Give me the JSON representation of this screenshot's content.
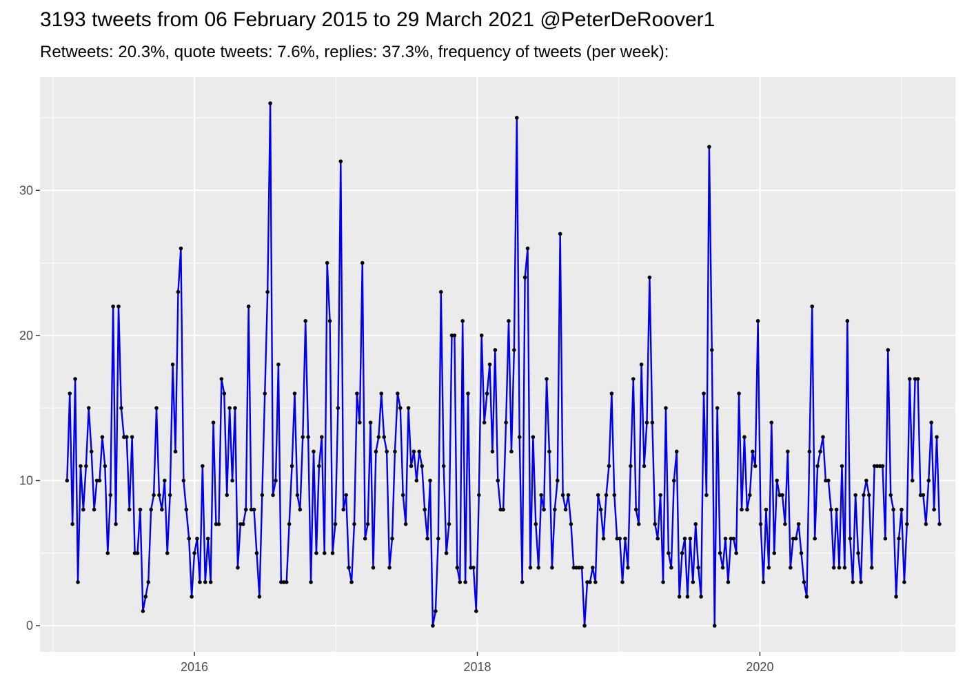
{
  "chart_data": {
    "type": "line",
    "title": "3193 tweets from 06 February 2015 to 29 March 2021 @PeterDeRoover1",
    "subtitle": "Retweets: 20.3%, quote tweets: 7.6%, replies: 37.3%, frequency of tweets (per week):",
    "xlabel": "",
    "ylabel": "",
    "x_start_date": "2015-02-06",
    "x_end_date": "2021-03-29",
    "xlim": [
      "2014-11-28",
      "2021-05-20"
    ],
    "ylim": [
      -1.8,
      37.8
    ],
    "x_ticks": [
      {
        "date": "2016-01-01",
        "label": "2016"
      },
      {
        "date": "2018-01-01",
        "label": "2018"
      },
      {
        "date": "2020-01-01",
        "label": "2020"
      }
    ],
    "x_minor_ticks": [
      "2015-01-01",
      "2017-01-01",
      "2019-01-01",
      "2021-01-01"
    ],
    "y_ticks": [
      0,
      10,
      20,
      30
    ],
    "y_minor_ticks": [
      5,
      15,
      25,
      35
    ],
    "grid": true,
    "line_color": "#0000ee",
    "point_color": "#000000",
    "panel_background": "#ebebeb",
    "series": [
      {
        "values": [
          10,
          16,
          7,
          17,
          3,
          11,
          8,
          11,
          15,
          12,
          8,
          10,
          10,
          13,
          11,
          5,
          9,
          22,
          7,
          22,
          15,
          13,
          13,
          8,
          13,
          5,
          5,
          8,
          1,
          2,
          3,
          8,
          9,
          15,
          9,
          8,
          10,
          5,
          9,
          18,
          12,
          23,
          26,
          10,
          8,
          6,
          2,
          5,
          6,
          3,
          11,
          3,
          6,
          3,
          14,
          7,
          7,
          17,
          16,
          9,
          15,
          10,
          15,
          4,
          7,
          7,
          8,
          22,
          8,
          8,
          5,
          2,
          9,
          16,
          23,
          36,
          9,
          10,
          18,
          3,
          3,
          3,
          7,
          11,
          16,
          9,
          8,
          13,
          21,
          13,
          3,
          12,
          5,
          11,
          13,
          5,
          25,
          21,
          5,
          7,
          15,
          32,
          8,
          9,
          4,
          3,
          7,
          16,
          14,
          25,
          6,
          7,
          14,
          4,
          12,
          13,
          16,
          13,
          12,
          4,
          6,
          12,
          16,
          15,
          9,
          7,
          15,
          11,
          12,
          10,
          12,
          11,
          8,
          6,
          10,
          0,
          1,
          6,
          23,
          11,
          5,
          7,
          20,
          20,
          4,
          3,
          21,
          3,
          16,
          4,
          4,
          1,
          9,
          20,
          14,
          16,
          18,
          12,
          19,
          10,
          8,
          8,
          14,
          21,
          12,
          19,
          35,
          13,
          3,
          24,
          26,
          4,
          13,
          7,
          4,
          9,
          8,
          17,
          12,
          4,
          8,
          10,
          27,
          9,
          8,
          9,
          7,
          4,
          4,
          4,
          4,
          0,
          3,
          3,
          4,
          3,
          9,
          8,
          6,
          9,
          11,
          16,
          9,
          6,
          6,
          3,
          6,
          4,
          11,
          17,
          8,
          7,
          18,
          11,
          14,
          24,
          14,
          7,
          6,
          9,
          3,
          15,
          5,
          4,
          10,
          12,
          2,
          5,
          6,
          2,
          6,
          3,
          7,
          4,
          2,
          16,
          9,
          33,
          19,
          0,
          15,
          5,
          4,
          6,
          3,
          6,
          6,
          5,
          16,
          8,
          13,
          8,
          9,
          12,
          11,
          21,
          7,
          3,
          8,
          4,
          14,
          5,
          10,
          9,
          9,
          7,
          12,
          4,
          6,
          6,
          7,
          5,
          3,
          2,
          12,
          22,
          6,
          11,
          12,
          13,
          10,
          10,
          8,
          4,
          8,
          4,
          11,
          4,
          21,
          6,
          3,
          9,
          5,
          3,
          9,
          10,
          9,
          4,
          11,
          11,
          11,
          11,
          6,
          19,
          9,
          8,
          2,
          6,
          8,
          3,
          7,
          17,
          10,
          17,
          17,
          9,
          9,
          7,
          10,
          14,
          8,
          13,
          7
        ]
      }
    ]
  }
}
